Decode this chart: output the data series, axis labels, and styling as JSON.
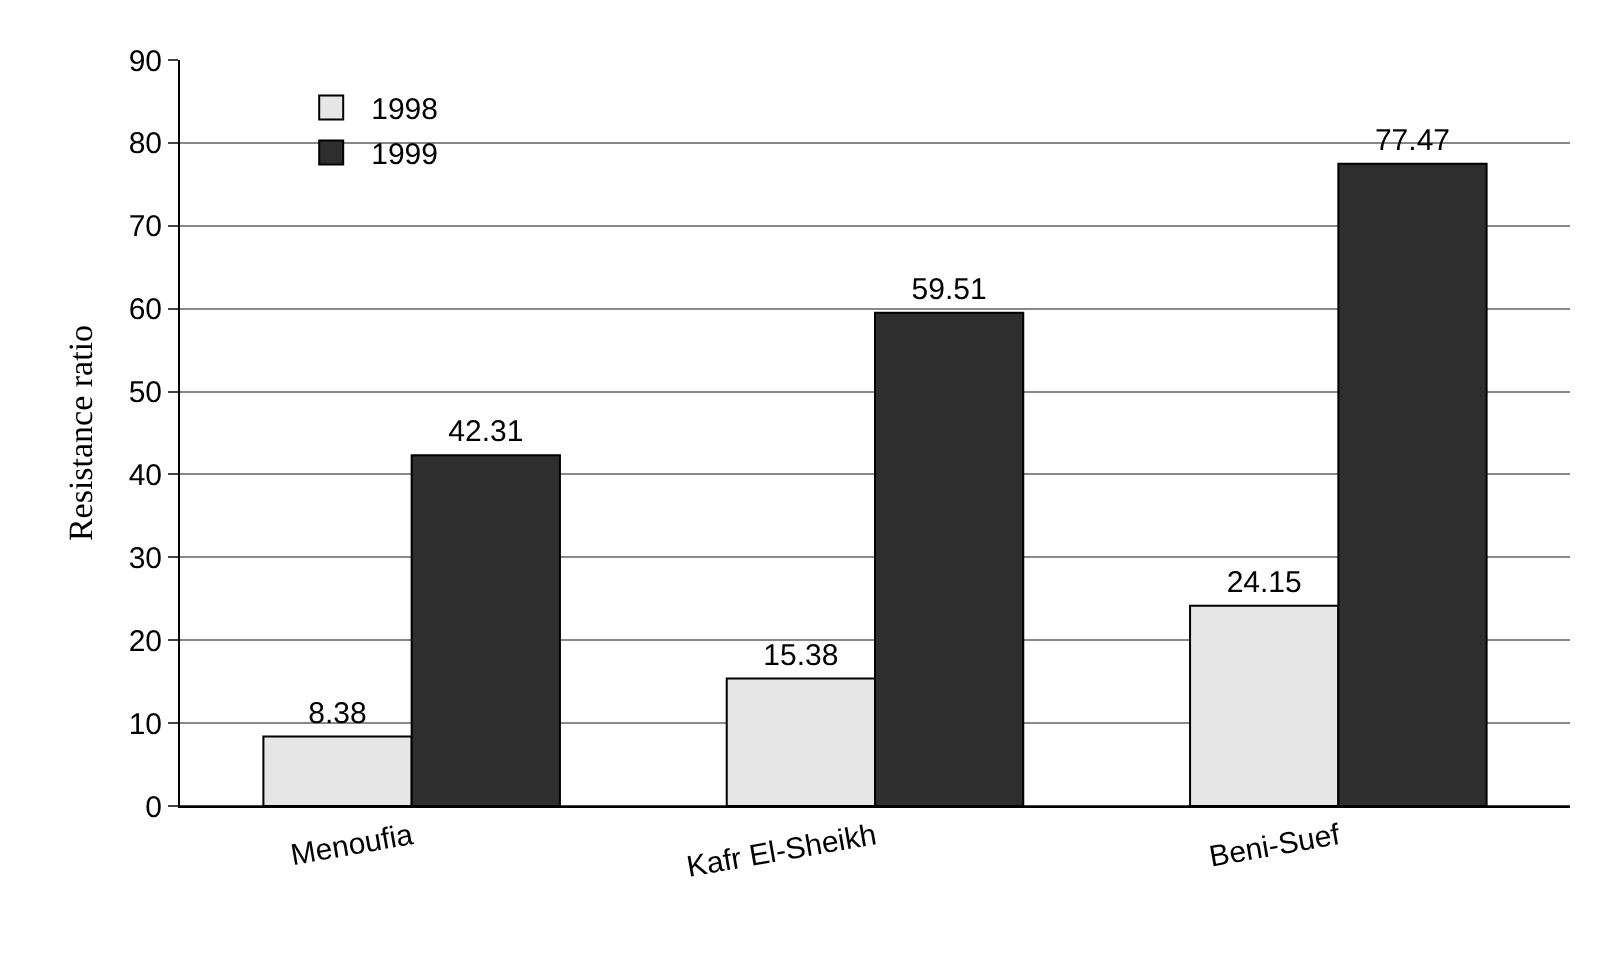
{
  "chart_data": {
    "type": "bar",
    "ylabel": "Resistance ratio",
    "categories": [
      "Menoufia",
      "Kafr El-Sheikh",
      "Beni-Suef"
    ],
    "series": [
      {
        "name": "1998",
        "color": "#e6e6e6",
        "values": [
          8.38,
          15.38,
          24.15
        ]
      },
      {
        "name": "1999",
        "color": "#2e2e2e",
        "values": [
          42.31,
          59.51,
          77.47
        ]
      }
    ],
    "ylim": [
      0,
      90
    ],
    "yticks": [
      0,
      10,
      20,
      30,
      40,
      50,
      60,
      70,
      80,
      90
    ],
    "grid": "y",
    "legend": "top left",
    "data_labels": true
  }
}
